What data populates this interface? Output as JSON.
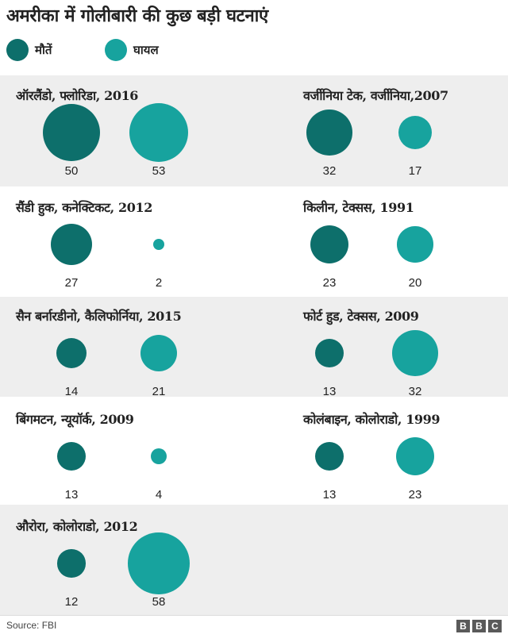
{
  "title": "अमरीका में गोलीबारी की कुछ बड़ी घटनाएं",
  "legend": {
    "deaths_label": "मौतें",
    "injured_label": "घायल"
  },
  "colors": {
    "deaths": "#0d6f6b",
    "injured": "#17a39e",
    "band": "#eeeeee"
  },
  "chart_data": {
    "type": "bubble",
    "title": "अमरीका में गोलीबारी की कुछ बड़ी घटनाएं",
    "series_names": [
      "मौतें",
      "घायल"
    ],
    "incidents": [
      {
        "name": "ऑरलैंडो, फ्लोरिडा, 2016",
        "deaths": 50,
        "injured": 53
      },
      {
        "name": "वर्जीनिया टेक, वर्जीनिया,2007",
        "deaths": 32,
        "injured": 17
      },
      {
        "name": "सैंडी हुक, कनेक्टिकट, 2012",
        "deaths": 27,
        "injured": 2
      },
      {
        "name": "किलीन, टेक्सस, 1991",
        "deaths": 23,
        "injured": 20
      },
      {
        "name": "सैन बर्नारडीनो, कैलिफोर्निया, 2015",
        "deaths": 14,
        "injured": 21
      },
      {
        "name": "फोर्ट हुड, टेक्सस, 2009",
        "deaths": 13,
        "injured": 32
      },
      {
        "name": "बिंगमटन, न्यूयॉर्क, 2009",
        "deaths": 13,
        "injured": 4
      },
      {
        "name": "कोलंबाइन, कोलोराडो, 1999",
        "deaths": 13,
        "injured": 23
      },
      {
        "name": "औरोरा, कोलोराडो, 2012",
        "deaths": 12,
        "injured": 58
      }
    ]
  },
  "footer": {
    "source": "Source: FBI",
    "logo_letters": [
      "B",
      "B",
      "C"
    ]
  }
}
